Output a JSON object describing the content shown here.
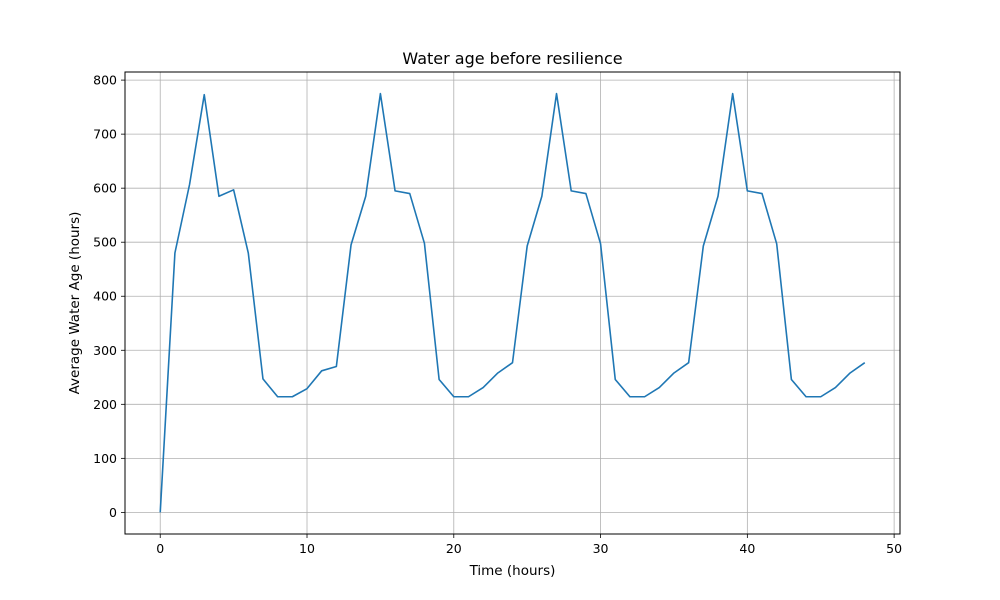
{
  "chart_data": {
    "type": "line",
    "title": "Water age before resilience",
    "xlabel": "Time (hours)",
    "ylabel": "Average Water Age (hours)",
    "xlim": [
      -2.4,
      50.4
    ],
    "ylim": [
      -40,
      815
    ],
    "xticks": [
      0,
      10,
      20,
      30,
      40,
      50
    ],
    "yticks": [
      0,
      100,
      200,
      300,
      400,
      500,
      600,
      700,
      800
    ],
    "grid": true,
    "series": [
      {
        "color": "#1f77b4",
        "x": [
          0,
          1,
          2,
          3,
          4,
          5,
          6,
          7,
          8,
          9,
          10,
          11,
          12,
          13,
          14,
          15,
          16,
          17,
          18,
          19,
          20,
          21,
          22,
          23,
          24,
          25,
          26,
          27,
          28,
          29,
          30,
          31,
          32,
          33,
          34,
          35,
          36,
          37,
          38,
          39,
          40,
          41,
          42,
          43,
          44,
          45,
          46,
          47,
          48
        ],
        "y": [
          0,
          480,
          607,
          773,
          585,
          597,
          480,
          247,
          214,
          214,
          229,
          262,
          270,
          495,
          585,
          775,
          595,
          590,
          498,
          246,
          214,
          214,
          231,
          258,
          277,
          493,
          585,
          775,
          595,
          590,
          497,
          246,
          214,
          214,
          231,
          258,
          277,
          493,
          585,
          775,
          595,
          590,
          497,
          246,
          214,
          214,
          231,
          258,
          277
        ]
      }
    ]
  }
}
